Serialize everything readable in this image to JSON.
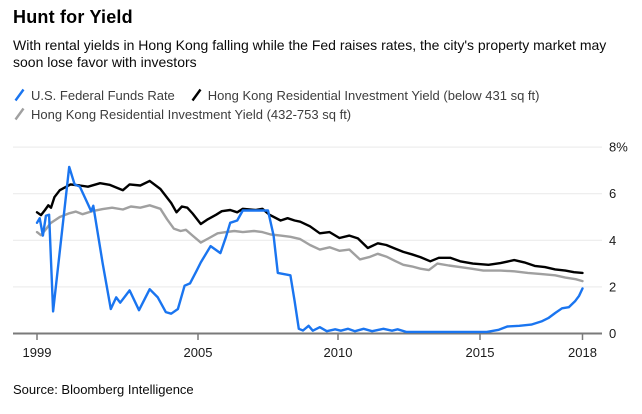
{
  "header": {
    "title": "Hunt for Yield",
    "subtitle": "With rental yields in Hong Kong falling while the Fed raises rates, the city's property market may soon lose favor with investors"
  },
  "footer": {
    "source": "Source: Bloomberg Intelligence"
  },
  "colors": {
    "fed_blue": "#1a75f0",
    "hk_small_black": "#000000",
    "hk_mid_gray": "#a0a0a0",
    "gridline": "#e9e9e9",
    "axis": "#7a7a7a",
    "tick_label": "#1a1a1a"
  },
  "chart_data": {
    "type": "line",
    "title": "Hunt for Yield",
    "xlabel": "",
    "ylabel": "",
    "ylim": [
      0,
      8
    ],
    "grid": true,
    "legend_position": "top",
    "y_ticks": [
      {
        "value": 8,
        "label": "8%"
      },
      {
        "value": 6,
        "label": "6"
      },
      {
        "value": 4,
        "label": "4"
      },
      {
        "value": 2,
        "label": "2"
      },
      {
        "value": 0,
        "label": "0"
      }
    ],
    "x_ticks": [
      {
        "year": 1999,
        "label": "1999"
      },
      {
        "year": 2005,
        "label": "2005"
      },
      {
        "year": 2010,
        "label": "2010"
      },
      {
        "year": 2015,
        "label": "2015"
      },
      {
        "year": 2018,
        "label": "2018"
      }
    ],
    "series": [
      {
        "name": "U.S. Federal Funds Rate",
        "color": "#1a75f0",
        "points": [
          [
            1999.0,
            4.75
          ],
          [
            1999.1,
            4.95
          ],
          [
            1999.22,
            4.2
          ],
          [
            1999.33,
            5.05
          ],
          [
            1999.45,
            5.1
          ],
          [
            1999.6,
            0.95
          ],
          [
            2000.2,
            7.15
          ],
          [
            2000.4,
            6.4
          ],
          [
            2000.6,
            6.3
          ],
          [
            2000.9,
            5.55
          ],
          [
            2001.02,
            5.25
          ],
          [
            2001.1,
            5.48
          ],
          [
            2001.45,
            3.0
          ],
          [
            2001.75,
            1.05
          ],
          [
            2001.95,
            1.55
          ],
          [
            2002.1,
            1.32
          ],
          [
            2002.45,
            1.85
          ],
          [
            2002.8,
            1.0
          ],
          [
            2003.2,
            1.9
          ],
          [
            2003.5,
            1.55
          ],
          [
            2003.8,
            0.92
          ],
          [
            2004.0,
            0.85
          ],
          [
            2004.25,
            1.05
          ],
          [
            2004.5,
            2.05
          ],
          [
            2004.7,
            2.15
          ],
          [
            2004.95,
            2.7
          ],
          [
            2005.1,
            3.05
          ],
          [
            2005.45,
            3.75
          ],
          [
            2005.8,
            3.45
          ],
          [
            2006.0,
            4.15
          ],
          [
            2006.15,
            4.75
          ],
          [
            2006.4,
            4.85
          ],
          [
            2006.6,
            5.28
          ],
          [
            2007.5,
            5.28
          ],
          [
            2007.7,
            4.2
          ],
          [
            2007.85,
            2.6
          ],
          [
            2008.3,
            2.5
          ],
          [
            2008.45,
            1.4
          ],
          [
            2008.6,
            0.2
          ],
          [
            2008.75,
            0.13
          ],
          [
            2008.95,
            0.33
          ],
          [
            2009.1,
            0.12
          ],
          [
            2009.35,
            0.27
          ],
          [
            2009.6,
            0.1
          ],
          [
            2009.9,
            0.18
          ],
          [
            2010.1,
            0.12
          ],
          [
            2010.35,
            0.2
          ],
          [
            2010.6,
            0.1
          ],
          [
            2010.9,
            0.2
          ],
          [
            2011.2,
            0.1
          ],
          [
            2011.6,
            0.2
          ],
          [
            2011.9,
            0.12
          ],
          [
            2012.1,
            0.18
          ],
          [
            2012.4,
            0.07
          ],
          [
            2013.5,
            0.07
          ],
          [
            2015.2,
            0.07
          ],
          [
            2015.55,
            0.16
          ],
          [
            2015.8,
            0.3
          ],
          [
            2016.15,
            0.33
          ],
          [
            2016.5,
            0.38
          ],
          [
            2016.8,
            0.52
          ],
          [
            2017.0,
            0.66
          ],
          [
            2017.2,
            0.88
          ],
          [
            2017.4,
            1.08
          ],
          [
            2017.6,
            1.13
          ],
          [
            2017.78,
            1.38
          ],
          [
            2017.9,
            1.62
          ],
          [
            2018.0,
            1.93
          ]
        ]
      },
      {
        "name": "Hong Kong Residential Investment Yield (below 431 sq ft)",
        "color": "#000000",
        "points": [
          [
            1999.0,
            5.2
          ],
          [
            1999.15,
            5.08
          ],
          [
            1999.3,
            5.3
          ],
          [
            1999.42,
            5.5
          ],
          [
            1999.52,
            5.4
          ],
          [
            1999.65,
            5.85
          ],
          [
            1999.85,
            6.15
          ],
          [
            2000.25,
            6.4
          ],
          [
            2000.6,
            6.35
          ],
          [
            2000.9,
            6.3
          ],
          [
            2001.35,
            6.45
          ],
          [
            2001.7,
            6.38
          ],
          [
            2002.2,
            6.15
          ],
          [
            2002.45,
            6.4
          ],
          [
            2002.85,
            6.35
          ],
          [
            2003.2,
            6.55
          ],
          [
            2003.6,
            6.2
          ],
          [
            2004.0,
            5.6
          ],
          [
            2004.2,
            5.2
          ],
          [
            2004.4,
            5.45
          ],
          [
            2004.6,
            5.4
          ],
          [
            2004.8,
            5.15
          ],
          [
            2005.1,
            4.7
          ],
          [
            2005.35,
            4.9
          ],
          [
            2005.65,
            5.1
          ],
          [
            2005.85,
            5.25
          ],
          [
            2006.15,
            5.3
          ],
          [
            2006.4,
            5.2
          ],
          [
            2006.6,
            5.35
          ],
          [
            2007.05,
            5.3
          ],
          [
            2007.3,
            5.35
          ],
          [
            2007.55,
            5.1
          ],
          [
            2007.95,
            4.85
          ],
          [
            2008.2,
            4.95
          ],
          [
            2008.45,
            4.85
          ],
          [
            2008.65,
            4.8
          ],
          [
            2009.0,
            4.6
          ],
          [
            2009.35,
            4.3
          ],
          [
            2009.7,
            4.35
          ],
          [
            2010.05,
            4.1
          ],
          [
            2010.4,
            4.2
          ],
          [
            2010.7,
            4.08
          ],
          [
            2011.05,
            3.67
          ],
          [
            2011.4,
            3.87
          ],
          [
            2011.7,
            3.8
          ],
          [
            2012.0,
            3.65
          ],
          [
            2012.3,
            3.5
          ],
          [
            2012.6,
            3.4
          ],
          [
            2012.9,
            3.28
          ],
          [
            2013.25,
            3.1
          ],
          [
            2013.55,
            3.25
          ],
          [
            2013.95,
            3.25
          ],
          [
            2014.3,
            3.1
          ],
          [
            2014.75,
            3.0
          ],
          [
            2015.25,
            2.95
          ],
          [
            2015.6,
            3.02
          ],
          [
            2016.0,
            3.15
          ],
          [
            2016.3,
            3.05
          ],
          [
            2016.6,
            2.9
          ],
          [
            2016.9,
            2.85
          ],
          [
            2017.2,
            2.75
          ],
          [
            2017.5,
            2.7
          ],
          [
            2017.75,
            2.63
          ],
          [
            2018.0,
            2.6
          ]
        ]
      },
      {
        "name": "Hong Kong Residential Investment Yield (432-753 sq ft)",
        "color": "#a0a0a0",
        "points": [
          [
            1999.0,
            4.35
          ],
          [
            1999.15,
            4.22
          ],
          [
            1999.35,
            4.5
          ],
          [
            1999.5,
            4.73
          ],
          [
            1999.85,
            5.0
          ],
          [
            2000.2,
            5.16
          ],
          [
            2000.45,
            5.23
          ],
          [
            2000.7,
            5.12
          ],
          [
            2001.1,
            5.26
          ],
          [
            2001.45,
            5.34
          ],
          [
            2001.8,
            5.4
          ],
          [
            2002.2,
            5.32
          ],
          [
            2002.5,
            5.45
          ],
          [
            2002.85,
            5.4
          ],
          [
            2003.2,
            5.5
          ],
          [
            2003.6,
            5.35
          ],
          [
            2003.85,
            4.9
          ],
          [
            2004.1,
            4.5
          ],
          [
            2004.35,
            4.4
          ],
          [
            2004.55,
            4.45
          ],
          [
            2004.8,
            4.2
          ],
          [
            2005.1,
            3.9
          ],
          [
            2005.4,
            4.1
          ],
          [
            2005.7,
            4.3
          ],
          [
            2006.0,
            4.35
          ],
          [
            2006.3,
            4.4
          ],
          [
            2006.6,
            4.35
          ],
          [
            2007.0,
            4.4
          ],
          [
            2007.3,
            4.35
          ],
          [
            2007.6,
            4.25
          ],
          [
            2007.95,
            4.2
          ],
          [
            2008.3,
            4.15
          ],
          [
            2008.65,
            4.05
          ],
          [
            2009.0,
            3.8
          ],
          [
            2009.35,
            3.6
          ],
          [
            2009.7,
            3.7
          ],
          [
            2010.05,
            3.55
          ],
          [
            2010.4,
            3.6
          ],
          [
            2010.77,
            3.18
          ],
          [
            2011.1,
            3.28
          ],
          [
            2011.4,
            3.42
          ],
          [
            2011.7,
            3.3
          ],
          [
            2012.0,
            3.12
          ],
          [
            2012.3,
            2.95
          ],
          [
            2012.6,
            2.88
          ],
          [
            2012.9,
            2.78
          ],
          [
            2013.2,
            2.72
          ],
          [
            2013.5,
            3.0
          ],
          [
            2013.9,
            2.92
          ],
          [
            2014.3,
            2.85
          ],
          [
            2014.7,
            2.78
          ],
          [
            2015.1,
            2.7
          ],
          [
            2015.6,
            2.7
          ],
          [
            2016.0,
            2.67
          ],
          [
            2016.4,
            2.6
          ],
          [
            2016.8,
            2.55
          ],
          [
            2017.2,
            2.5
          ],
          [
            2017.5,
            2.4
          ],
          [
            2017.8,
            2.33
          ],
          [
            2018.0,
            2.25
          ]
        ]
      }
    ]
  }
}
